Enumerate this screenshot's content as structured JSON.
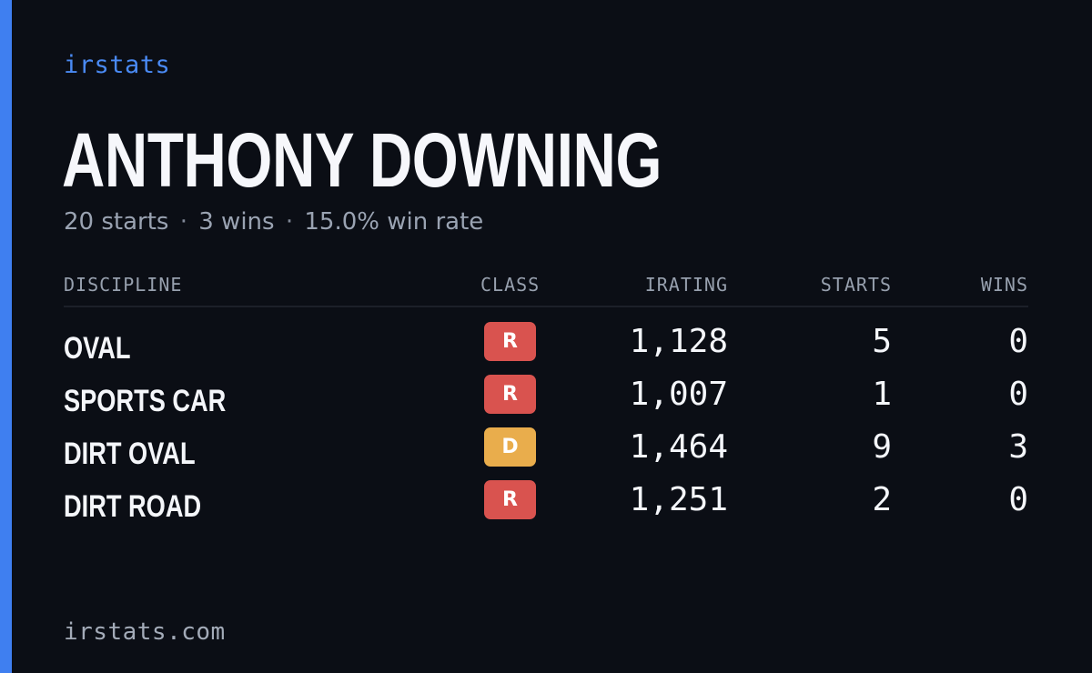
{
  "brand": "irstats",
  "player": {
    "name": "ANTHONY DOWNING"
  },
  "summary": {
    "starts": "20 starts",
    "wins": "3 wins",
    "win_rate": "15.0% win rate",
    "separator": "·"
  },
  "table": {
    "headers": {
      "discipline": "DISCIPLINE",
      "class": "CLASS",
      "irating": "IRATING",
      "starts": "STARTS",
      "wins": "WINS"
    },
    "rows": [
      {
        "discipline": "OVAL",
        "class": "R",
        "class_color": "#d9534f",
        "irating": "1,128",
        "starts": "5",
        "wins": "0"
      },
      {
        "discipline": "SPORTS CAR",
        "class": "R",
        "class_color": "#d9534f",
        "irating": "1,007",
        "starts": "1",
        "wins": "0"
      },
      {
        "discipline": "DIRT OVAL",
        "class": "D",
        "class_color": "#e9ad4c",
        "irating": "1,464",
        "starts": "9",
        "wins": "3"
      },
      {
        "discipline": "DIRT ROAD",
        "class": "R",
        "class_color": "#d9534f",
        "irating": "1,251",
        "starts": "2",
        "wins": "0"
      }
    ]
  },
  "footer": {
    "url": "irstats.com"
  },
  "colors": {
    "background": "#0b0e15",
    "accent": "#3f7ff0",
    "brand": "#4a8af4",
    "class_r": "#d9534f",
    "class_d": "#e9ad4c"
  }
}
